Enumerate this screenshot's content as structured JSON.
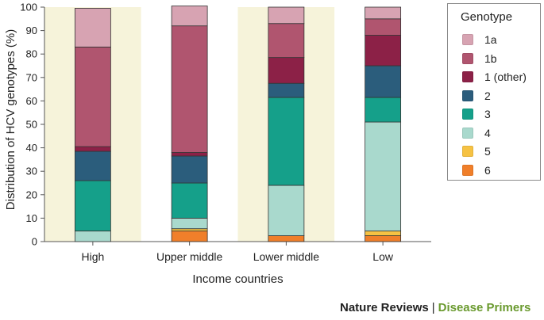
{
  "chart_data": {
    "type": "bar",
    "stacked": true,
    "xlabel": "Income countries",
    "ylabel": "Distribution of HCV genotypes (%)",
    "ylim": [
      0,
      100
    ],
    "yticks": [
      0,
      10,
      20,
      30,
      40,
      50,
      60,
      70,
      80,
      90,
      100
    ],
    "categories": [
      "High",
      "Upper middle",
      "Lower middle",
      "Low"
    ],
    "legend_title": "Genotype",
    "legend_position": "right",
    "series": [
      {
        "name": "6",
        "color": "#f07f2a",
        "values": [
          0,
          4.5,
          2.5,
          2.5
        ]
      },
      {
        "name": "5",
        "color": "#f6c243",
        "values": [
          0,
          1,
          0,
          2
        ]
      },
      {
        "name": "4",
        "color": "#a9d9cd",
        "values": [
          4.5,
          4.5,
          21.5,
          46.5
        ]
      },
      {
        "name": "3",
        "color": "#15a08a",
        "values": [
          21.5,
          15,
          37.5,
          10.5
        ]
      },
      {
        "name": "2",
        "color": "#2b5d7c",
        "values": [
          12.5,
          11.5,
          6,
          13.5
        ]
      },
      {
        "name": "1 (other)",
        "color": "#8c2147",
        "values": [
          2,
          1.5,
          11,
          13
        ]
      },
      {
        "name": "1b",
        "color": "#b0556f",
        "values": [
          42.5,
          54,
          14.5,
          7
        ]
      },
      {
        "name": "1a",
        "color": "#d7a3b2",
        "values": [
          16.5,
          8.5,
          7,
          5
        ]
      }
    ],
    "background_bands": [
      "#f6f3da",
      "#ffffff"
    ]
  },
  "footer": {
    "brand": "Nature Reviews",
    "separator": "|",
    "series": "Disease Primers"
  }
}
